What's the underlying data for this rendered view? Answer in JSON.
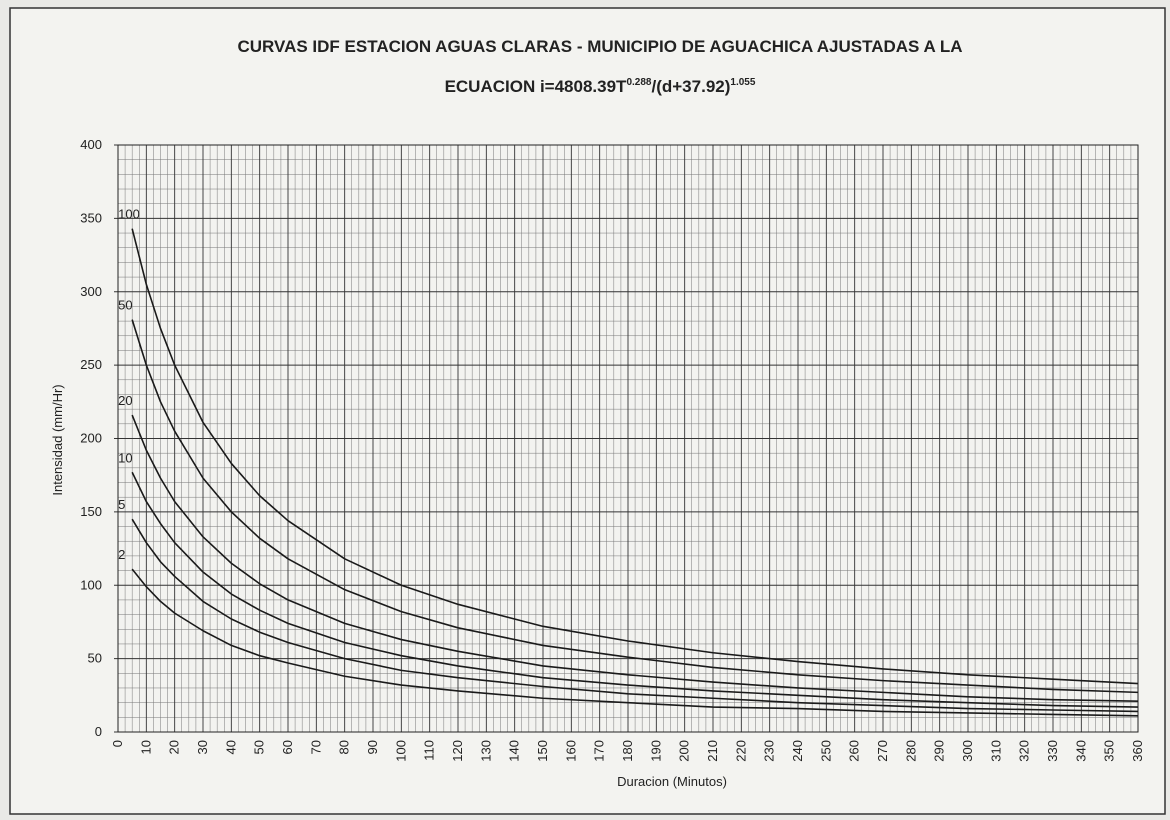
{
  "chart_data": {
    "type": "line",
    "title": {
      "line1": "CURVAS IDF ESTACION AGUAS CLARAS - MUNICIPIO DE AGUACHICA AJUSTADAS A LA",
      "line2": [
        "ECUACION i=4808.39T",
        "0.288",
        "/(d+37.92)",
        "1.055"
      ]
    },
    "x_label": "Duracion (Minutos)",
    "y_label": "Intensidad (mm/Hr)",
    "x": [
      5,
      10,
      15,
      20,
      30,
      40,
      50,
      60,
      80,
      100,
      120,
      150,
      180,
      210,
      240,
      270,
      300,
      330,
      360
    ],
    "series": [
      {
        "name": "2",
        "color": "#1a1a1a",
        "values": [
          111,
          99,
          89,
          81,
          69,
          59,
          52,
          47,
          38,
          32,
          28,
          23,
          20,
          17,
          16,
          14,
          13,
          12,
          11
        ]
      },
      {
        "name": "5",
        "color": "#1a1a1a",
        "values": [
          145,
          129,
          116,
          106,
          89,
          77,
          68,
          61,
          50,
          42,
          37,
          31,
          26,
          23,
          20,
          18,
          16,
          15,
          14
        ]
      },
      {
        "name": "10",
        "color": "#1a1a1a",
        "values": [
          177,
          157,
          142,
          129,
          109,
          94,
          83,
          74,
          61,
          52,
          45,
          37,
          32,
          28,
          25,
          22,
          20,
          18,
          17
        ]
      },
      {
        "name": "20",
        "color": "#1a1a1a",
        "values": [
          216,
          192,
          173,
          157,
          133,
          115,
          101,
          90,
          74,
          63,
          55,
          45,
          39,
          34,
          30,
          27,
          24,
          22,
          21
        ]
      },
      {
        "name": "50",
        "color": "#1a1a1a",
        "values": [
          281,
          250,
          225,
          205,
          173,
          150,
          132,
          118,
          97,
          82,
          71,
          59,
          51,
          44,
          39,
          35,
          32,
          29,
          27
        ]
      },
      {
        "name": "100",
        "color": "#1a1a1a",
        "values": [
          343,
          305,
          275,
          250,
          211,
          183,
          161,
          144,
          118,
          100,
          87,
          72,
          62,
          54,
          48,
          43,
          39,
          36,
          33
        ]
      }
    ],
    "xlim": [
      0,
      360
    ],
    "xticks": [
      0,
      10,
      20,
      30,
      40,
      50,
      60,
      70,
      80,
      90,
      100,
      110,
      120,
      130,
      140,
      150,
      160,
      170,
      180,
      190,
      200,
      210,
      220,
      230,
      240,
      250,
      260,
      270,
      280,
      290,
      300,
      310,
      320,
      330,
      340,
      350,
      360
    ],
    "ylim": [
      0,
      400
    ],
    "yticks": [
      0,
      50,
      100,
      150,
      200,
      250,
      300,
      350,
      400
    ],
    "grid": true,
    "minor_grid": true
  }
}
